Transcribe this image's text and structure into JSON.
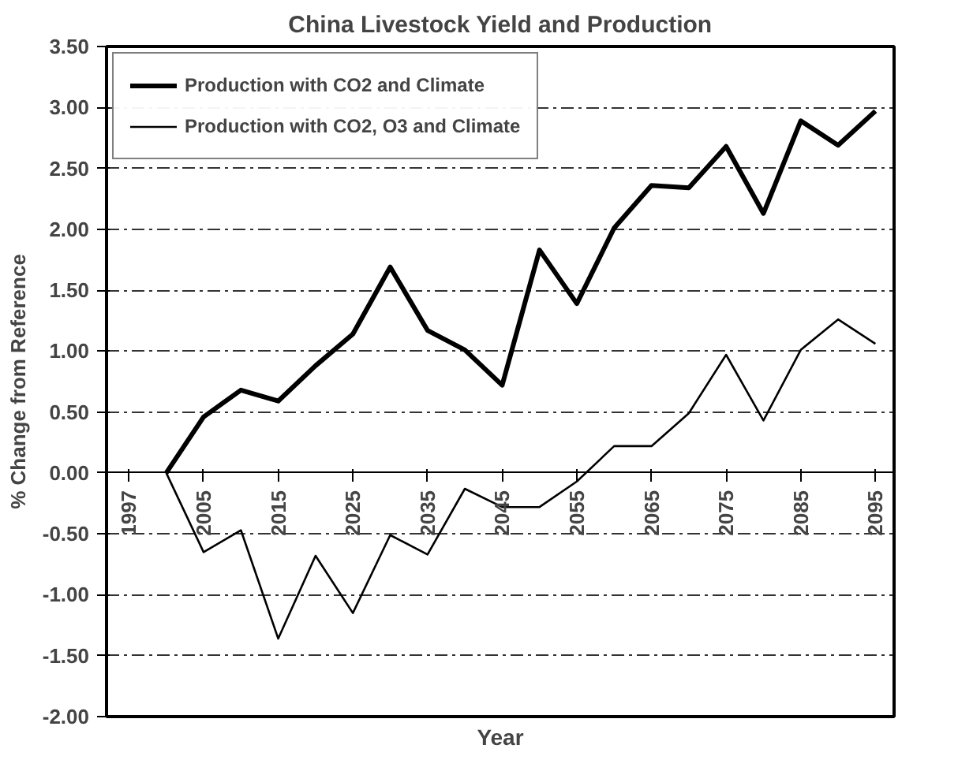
{
  "chart_data": {
    "type": "line",
    "title": "China Livestock Yield and Production",
    "xlabel": "Year",
    "ylabel": "% Change from Reference",
    "categories": [
      "1997",
      null,
      "2005",
      null,
      "2015",
      null,
      "2025",
      null,
      "2035",
      null,
      "2045",
      null,
      "2055",
      null,
      "2065",
      null,
      "2075",
      null,
      "2085",
      null,
      "2095"
    ],
    "series": [
      {
        "name": "Production with CO2 and Climate",
        "color": "#000000",
        "values": [
          null,
          0,
          0.46,
          0.68,
          0.59,
          0.88,
          1.14,
          1.69,
          1.17,
          1.01,
          0.72,
          1.83,
          1.39,
          2.01,
          2.36,
          2.34,
          2.68,
          2.13,
          2.89,
          2.69,
          2.97
        ]
      },
      {
        "name": "Production with CO2, O3 and Climate",
        "color": "#000000",
        "values": [
          null,
          0,
          -0.65,
          -0.47,
          -1.36,
          -0.68,
          -1.15,
          -0.51,
          -0.67,
          -0.13,
          -0.28,
          -0.28,
          -0.07,
          0.22,
          0.22,
          0.49,
          0.97,
          0.43,
          1.01,
          1.26,
          1.06
        ]
      }
    ],
    "ylim": [
      -2,
      3.5
    ],
    "yticks": [
      {
        "value": -2,
        "label": "-2.00"
      },
      {
        "value": -1.5,
        "label": "-1.50"
      },
      {
        "value": -1,
        "label": "-1.00"
      },
      {
        "value": -0.5,
        "label": "-0.50"
      },
      {
        "value": 0,
        "label": "0.00"
      },
      {
        "value": 0.5,
        "label": "0.50"
      },
      {
        "value": 1,
        "label": "1.00"
      },
      {
        "value": 1.5,
        "label": "1.50"
      },
      {
        "value": 2,
        "label": "2.00"
      },
      {
        "value": 2.5,
        "label": "2.50"
      },
      {
        "value": 3,
        "label": "3.00"
      },
      {
        "value": 3.5,
        "label": "3.50"
      }
    ],
    "grid": "y",
    "legend": "top left",
    "line_style": "solid",
    "marker": "none"
  }
}
